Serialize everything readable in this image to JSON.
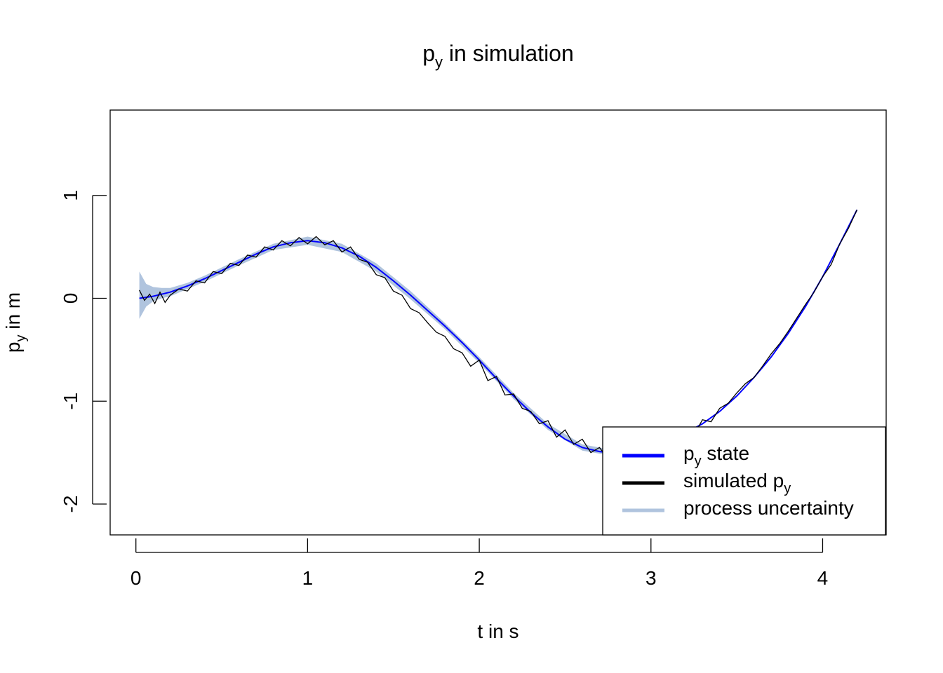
{
  "title": {
    "main": "p",
    "sub": "y",
    "rest": " in simulation"
  },
  "xlabel": "t in s",
  "ylabel": {
    "main": "p",
    "sub": "y",
    "rest": " in m"
  },
  "legend": {
    "placement": "bottom-right",
    "items": [
      {
        "pre": "p",
        "sub": "y",
        "post": " state",
        "color": "#0000ff"
      },
      {
        "pre": "simulated  p",
        "sub": "y",
        "post": "",
        "color": "#000000"
      },
      {
        "pre": "process uncertainty",
        "sub": "",
        "post": "",
        "color": "#b0c4de"
      }
    ]
  },
  "chart_data": {
    "type": "line",
    "xlim": [
      -0.15,
      4.37
    ],
    "ylim": [
      -2.3,
      1.83
    ],
    "x_ticks": [
      0,
      1,
      2,
      3,
      4
    ],
    "y_ticks": [
      -2,
      -1,
      0,
      1
    ],
    "grid": false,
    "colors": {
      "state": "#0000ff",
      "simulated": "#000000",
      "uncertainty": "#b0c4de"
    },
    "series": [
      {
        "name": "p_y state",
        "x": [
          0.02,
          0.1,
          0.2,
          0.3,
          0.4,
          0.5,
          0.6,
          0.7,
          0.8,
          0.9,
          1.0,
          1.1,
          1.2,
          1.3,
          1.4,
          1.5,
          1.6,
          1.7,
          1.8,
          1.9,
          2.0,
          2.1,
          2.2,
          2.3,
          2.4,
          2.5,
          2.6,
          2.7,
          2.8,
          2.9,
          3.0,
          3.1,
          3.2,
          3.3,
          3.4,
          3.5,
          3.6,
          3.7,
          3.8,
          3.9,
          4.0,
          4.1,
          4.2
        ],
        "y": [
          0.0,
          0.02,
          0.06,
          0.12,
          0.19,
          0.27,
          0.35,
          0.43,
          0.5,
          0.54,
          0.56,
          0.54,
          0.49,
          0.41,
          0.3,
          0.17,
          0.03,
          -0.12,
          -0.27,
          -0.43,
          -0.6,
          -0.78,
          -0.95,
          -1.11,
          -1.25,
          -1.37,
          -1.45,
          -1.49,
          -1.51,
          -1.49,
          -1.45,
          -1.39,
          -1.31,
          -1.22,
          -1.1,
          -0.95,
          -0.77,
          -0.57,
          -0.34,
          -0.08,
          0.21,
          0.53,
          0.86
        ]
      },
      {
        "name": "simulated p_y",
        "x": [
          0.02,
          0.05,
          0.08,
          0.11,
          0.14,
          0.17,
          0.2,
          0.25,
          0.3,
          0.35,
          0.4,
          0.45,
          0.5,
          0.55,
          0.6,
          0.65,
          0.7,
          0.75,
          0.8,
          0.85,
          0.9,
          0.95,
          1.0,
          1.05,
          1.1,
          1.15,
          1.2,
          1.25,
          1.3,
          1.35,
          1.4,
          1.45,
          1.5,
          1.55,
          1.6,
          1.65,
          1.7,
          1.75,
          1.8,
          1.85,
          1.9,
          1.95,
          2.0,
          2.05,
          2.1,
          2.15,
          2.2,
          2.25,
          2.3,
          2.35,
          2.4,
          2.45,
          2.5,
          2.55,
          2.6,
          2.65,
          2.7,
          2.75,
          2.8,
          2.85,
          2.9,
          2.95,
          3.0,
          3.05,
          3.1,
          3.15,
          3.2,
          3.25,
          3.3,
          3.35,
          3.4,
          3.45,
          3.5,
          3.55,
          3.6,
          3.65,
          3.7,
          3.75,
          3.8,
          3.85,
          3.9,
          3.95,
          4.0,
          4.05,
          4.1,
          4.15,
          4.2
        ],
        "y": [
          0.08,
          -0.02,
          0.04,
          -0.05,
          0.06,
          -0.04,
          0.03,
          0.09,
          0.07,
          0.17,
          0.15,
          0.26,
          0.24,
          0.34,
          0.32,
          0.42,
          0.4,
          0.5,
          0.47,
          0.56,
          0.51,
          0.59,
          0.53,
          0.6,
          0.52,
          0.56,
          0.45,
          0.5,
          0.38,
          0.35,
          0.23,
          0.2,
          0.07,
          0.03,
          -0.1,
          -0.14,
          -0.24,
          -0.33,
          -0.37,
          -0.49,
          -0.53,
          -0.66,
          -0.6,
          -0.8,
          -0.76,
          -0.94,
          -0.93,
          -1.07,
          -1.1,
          -1.22,
          -1.19,
          -1.35,
          -1.28,
          -1.42,
          -1.37,
          -1.5,
          -1.45,
          -1.56,
          -1.48,
          -1.55,
          -1.45,
          -1.53,
          -1.42,
          -1.47,
          -1.36,
          -1.4,
          -1.26,
          -1.33,
          -1.18,
          -1.2,
          -1.07,
          -1.02,
          -0.92,
          -0.83,
          -0.77,
          -0.66,
          -0.54,
          -0.44,
          -0.32,
          -0.19,
          -0.06,
          0.06,
          0.21,
          0.33,
          0.53,
          0.68,
          0.86
        ]
      },
      {
        "name": "process uncertainty",
        "x": [
          0.02,
          0.06,
          0.1,
          0.15,
          0.2,
          0.3,
          0.4,
          0.6,
          0.8,
          1.0,
          1.2,
          1.4,
          1.6,
          1.8,
          2.0,
          2.2,
          2.4,
          2.6,
          2.8
        ],
        "upper": [
          0.26,
          0.14,
          0.11,
          0.1,
          0.1,
          0.15,
          0.22,
          0.38,
          0.53,
          0.6,
          0.53,
          0.34,
          0.07,
          -0.24,
          -0.57,
          -0.92,
          -1.22,
          -1.42,
          -1.48
        ],
        "lower": [
          -0.2,
          -0.08,
          -0.03,
          0.0,
          0.02,
          0.09,
          0.16,
          0.32,
          0.47,
          0.52,
          0.45,
          0.26,
          -0.01,
          -0.3,
          -0.63,
          -0.98,
          -1.28,
          -1.48,
          -1.54
        ]
      }
    ]
  }
}
